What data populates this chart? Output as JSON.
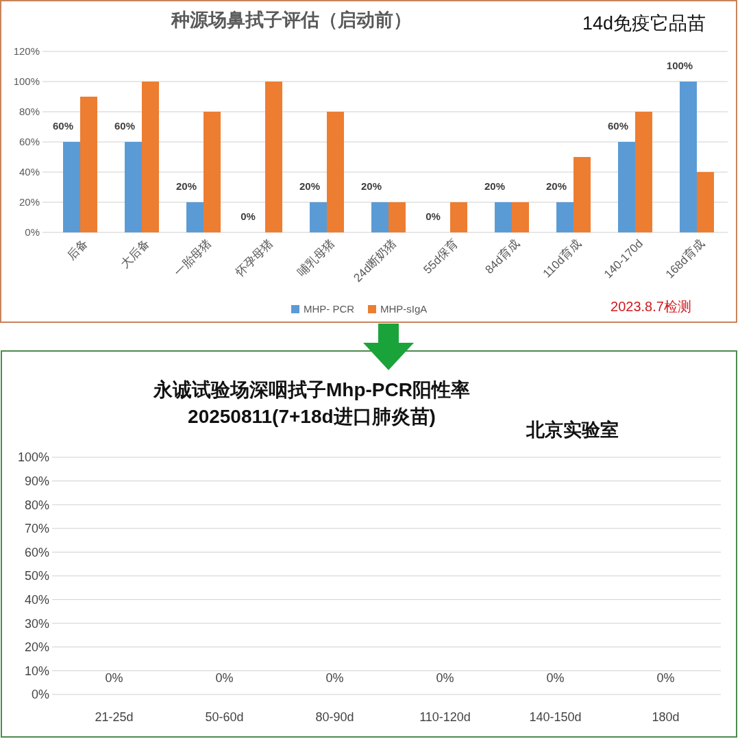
{
  "chart_data": [
    {
      "type": "bar",
      "title": "种源场鼻拭子评估（启动前）",
      "categories": [
        "后备",
        "大后备",
        "一胎母猪",
        "怀孕母猪",
        "哺乳母猪",
        "24d断奶猪",
        "55d保育",
        "84d育成",
        "110d育成",
        "140-170d",
        "168d育成"
      ],
      "series": [
        {
          "name": "MHP- PCR",
          "color": "#5b9bd5",
          "values": [
            60,
            60,
            20,
            0,
            20,
            20,
            0,
            20,
            20,
            60,
            100
          ],
          "value_labels": [
            "60%",
            "60%",
            "20%",
            "0%",
            "20%",
            "20%",
            "0%",
            "20%",
            "20%",
            "60%",
            "100%"
          ]
        },
        {
          "name": "MHP-sIgA",
          "color": "#ed7d31",
          "values": [
            90,
            100,
            80,
            100,
            80,
            20,
            20,
            20,
            50,
            80,
            40
          ]
        }
      ],
      "ylim": [
        0,
        120
      ],
      "yticks": [
        {
          "value": 0,
          "label": "0%"
        },
        {
          "value": 20,
          "label": "20%"
        },
        {
          "value": 40,
          "label": "40%"
        },
        {
          "value": 60,
          "label": "60%"
        },
        {
          "value": 80,
          "label": "80%"
        },
        {
          "value": 100,
          "label": "100%"
        },
        {
          "value": 120,
          "label": "120%"
        }
      ],
      "grid": "y",
      "legend": "bottom",
      "annotations": [
        "14d免疫它品苗",
        "2023.8.7检测"
      ]
    },
    {
      "type": "bar",
      "title": "永诚试验场深咽拭子Mhp-PCR阳性率",
      "subtitle": "20250811(7+18d进口肺炎苗)",
      "categories": [
        "21-25d",
        "50-60d",
        "80-90d",
        "110-120d",
        "140-150d",
        "180d"
      ],
      "values": [
        0,
        0,
        0,
        0,
        0,
        0
      ],
      "value_labels": [
        "0%",
        "0%",
        "0%",
        "0%",
        "0%",
        "0%"
      ],
      "ylim": [
        0,
        100
      ],
      "yticks": [
        {
          "value": 0,
          "label": "0%"
        },
        {
          "value": 10,
          "label": "10%"
        },
        {
          "value": 20,
          "label": "20%"
        },
        {
          "value": 30,
          "label": "30%"
        },
        {
          "value": 40,
          "label": "40%"
        },
        {
          "value": 50,
          "label": "50%"
        },
        {
          "value": 60,
          "label": "60%"
        },
        {
          "value": 70,
          "label": "70%"
        },
        {
          "value": 80,
          "label": "80%"
        },
        {
          "value": 90,
          "label": "90%"
        },
        {
          "value": 100,
          "label": "100%"
        }
      ],
      "grid": "y",
      "legend": false,
      "annotations": [
        "北京实验室"
      ]
    }
  ]
}
